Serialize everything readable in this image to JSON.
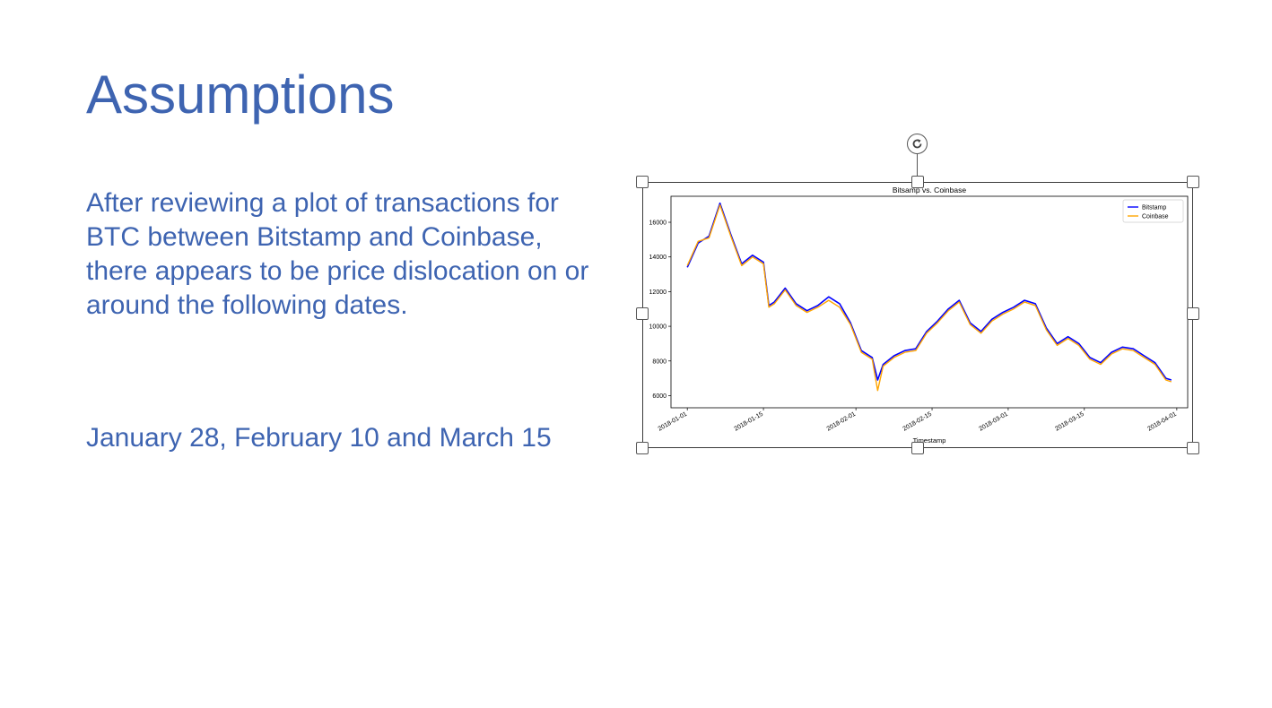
{
  "slide": {
    "title": "Assumptions",
    "body": "After reviewing a plot of transactions for BTC between Bitstamp and Coinbase, there appears to be price dislocation on or around the following dates.",
    "dates": "January 28, February 10 and March 15"
  },
  "colors": {
    "text": "#3e64b1",
    "bitstamp": "#0000ff",
    "coinbase": "#ffa500"
  },
  "chart_data": {
    "type": "line",
    "title": "Bitsamp vs. Coinbase",
    "xlabel": "Timestamp",
    "ylabel": "",
    "x_ticks": [
      "2018-01-01",
      "2018-01-15",
      "2018-02-01",
      "2018-02-15",
      "2018-03-01",
      "2018-03-15",
      "2018-04-01"
    ],
    "y_ticks": [
      6000,
      8000,
      10000,
      12000,
      14000,
      16000
    ],
    "xlim": [
      "2017-12-29",
      "2018-04-03"
    ],
    "ylim": [
      5300,
      17500
    ],
    "legend_placement": "top-right",
    "grid": false,
    "x": [
      "2018-01-01",
      "2018-01-03",
      "2018-01-05",
      "2018-01-07",
      "2018-01-09",
      "2018-01-11",
      "2018-01-13",
      "2018-01-15",
      "2018-01-16",
      "2018-01-17",
      "2018-01-19",
      "2018-01-21",
      "2018-01-23",
      "2018-01-25",
      "2018-01-27",
      "2018-01-29",
      "2018-01-31",
      "2018-02-02",
      "2018-02-04",
      "2018-02-05",
      "2018-02-06",
      "2018-02-08",
      "2018-02-10",
      "2018-02-12",
      "2018-02-14",
      "2018-02-16",
      "2018-02-18",
      "2018-02-20",
      "2018-02-22",
      "2018-02-24",
      "2018-02-26",
      "2018-02-28",
      "2018-03-02",
      "2018-03-04",
      "2018-03-06",
      "2018-03-08",
      "2018-03-10",
      "2018-03-12",
      "2018-03-14",
      "2018-03-16",
      "2018-03-18",
      "2018-03-20",
      "2018-03-22",
      "2018-03-24",
      "2018-03-26",
      "2018-03-28",
      "2018-03-30",
      "2018-03-31"
    ],
    "series": [
      {
        "name": "Bitstamp",
        "values": [
          13400,
          14800,
          15200,
          17100,
          15300,
          13600,
          14100,
          13700,
          11200,
          11400,
          12200,
          11300,
          10900,
          11200,
          11700,
          11300,
          10200,
          8600,
          8200,
          6900,
          7800,
          8300,
          8600,
          8700,
          9700,
          10300,
          11000,
          11500,
          10200,
          9700,
          10400,
          10800,
          11100,
          11500,
          11300,
          9900,
          9000,
          9400,
          9000,
          8200,
          7900,
          8500,
          8800,
          8700,
          8300,
          7900,
          7000,
          6900
        ]
      },
      {
        "name": "Coinbase",
        "values": [
          13500,
          14900,
          15100,
          17000,
          15200,
          13500,
          14000,
          13600,
          11100,
          11300,
          12100,
          11200,
          10800,
          11100,
          11500,
          11100,
          10100,
          8500,
          8100,
          6300,
          7700,
          8200,
          8500,
          8600,
          9600,
          10200,
          10900,
          11400,
          10100,
          9600,
          10300,
          10700,
          11000,
          11400,
          11200,
          9800,
          8900,
          9300,
          8900,
          8100,
          7800,
          8400,
          8700,
          8600,
          8200,
          7800,
          6900,
          6800
        ]
      }
    ]
  }
}
